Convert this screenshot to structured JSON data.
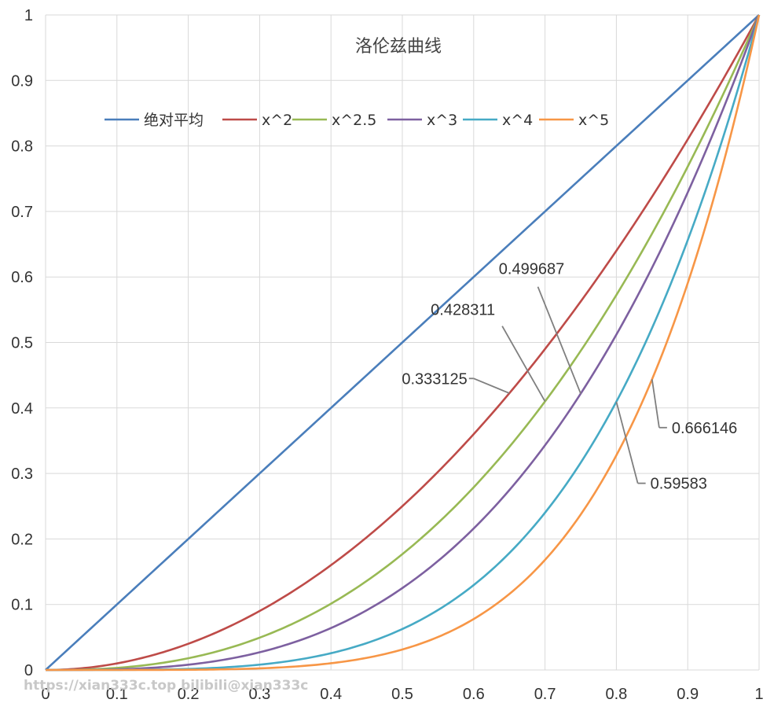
{
  "chart_data": {
    "type": "line",
    "title": "洛伦兹曲线",
    "xlim": [
      0,
      1
    ],
    "ylim": [
      0,
      1
    ],
    "x_ticks": [
      "0",
      "0.1",
      "0.2",
      "0.3",
      "0.4",
      "0.5",
      "0.6",
      "0.7",
      "0.8",
      "0.9",
      "1"
    ],
    "y_ticks": [
      "0",
      "0.1",
      "0.2",
      "0.3",
      "0.4",
      "0.5",
      "0.6",
      "0.7",
      "0.8",
      "0.9",
      "1"
    ],
    "grid": true,
    "legend_position": "top",
    "series": [
      {
        "name": "绝对平均",
        "exponent": 1,
        "color": "#4a7ebb"
      },
      {
        "name": "x^2",
        "exponent": 2,
        "color": "#be4b48"
      },
      {
        "name": "x^2.5",
        "exponent": 2.5,
        "color": "#98b954"
      },
      {
        "name": "x^3",
        "exponent": 3,
        "color": "#7d60a0"
      },
      {
        "name": "x^4",
        "exponent": 4,
        "color": "#46aac5"
      },
      {
        "name": "x^5",
        "exponent": 5,
        "color": "#f79646"
      }
    ],
    "annotations": [
      {
        "text": "0.333125",
        "point": [
          0.65,
          0.4225
        ],
        "label_at": [
          0.6,
          0.445
        ]
      },
      {
        "text": "0.428311",
        "point": [
          0.7,
          0.41
        ],
        "label_at": [
          0.64,
          0.525
        ]
      },
      {
        "text": "0.499687",
        "point": [
          0.75,
          0.4219
        ],
        "label_at": [
          0.69,
          0.585
        ]
      },
      {
        "text": "0.59583",
        "point": [
          0.8,
          0.4096
        ],
        "label_at": [
          0.83,
          0.285
        ]
      },
      {
        "text": "0.666146",
        "point": [
          0.85,
          0.4437
        ],
        "label_at": [
          0.86,
          0.37
        ]
      }
    ]
  },
  "watermark": "https://xian333c.top bilibili@xian333c"
}
